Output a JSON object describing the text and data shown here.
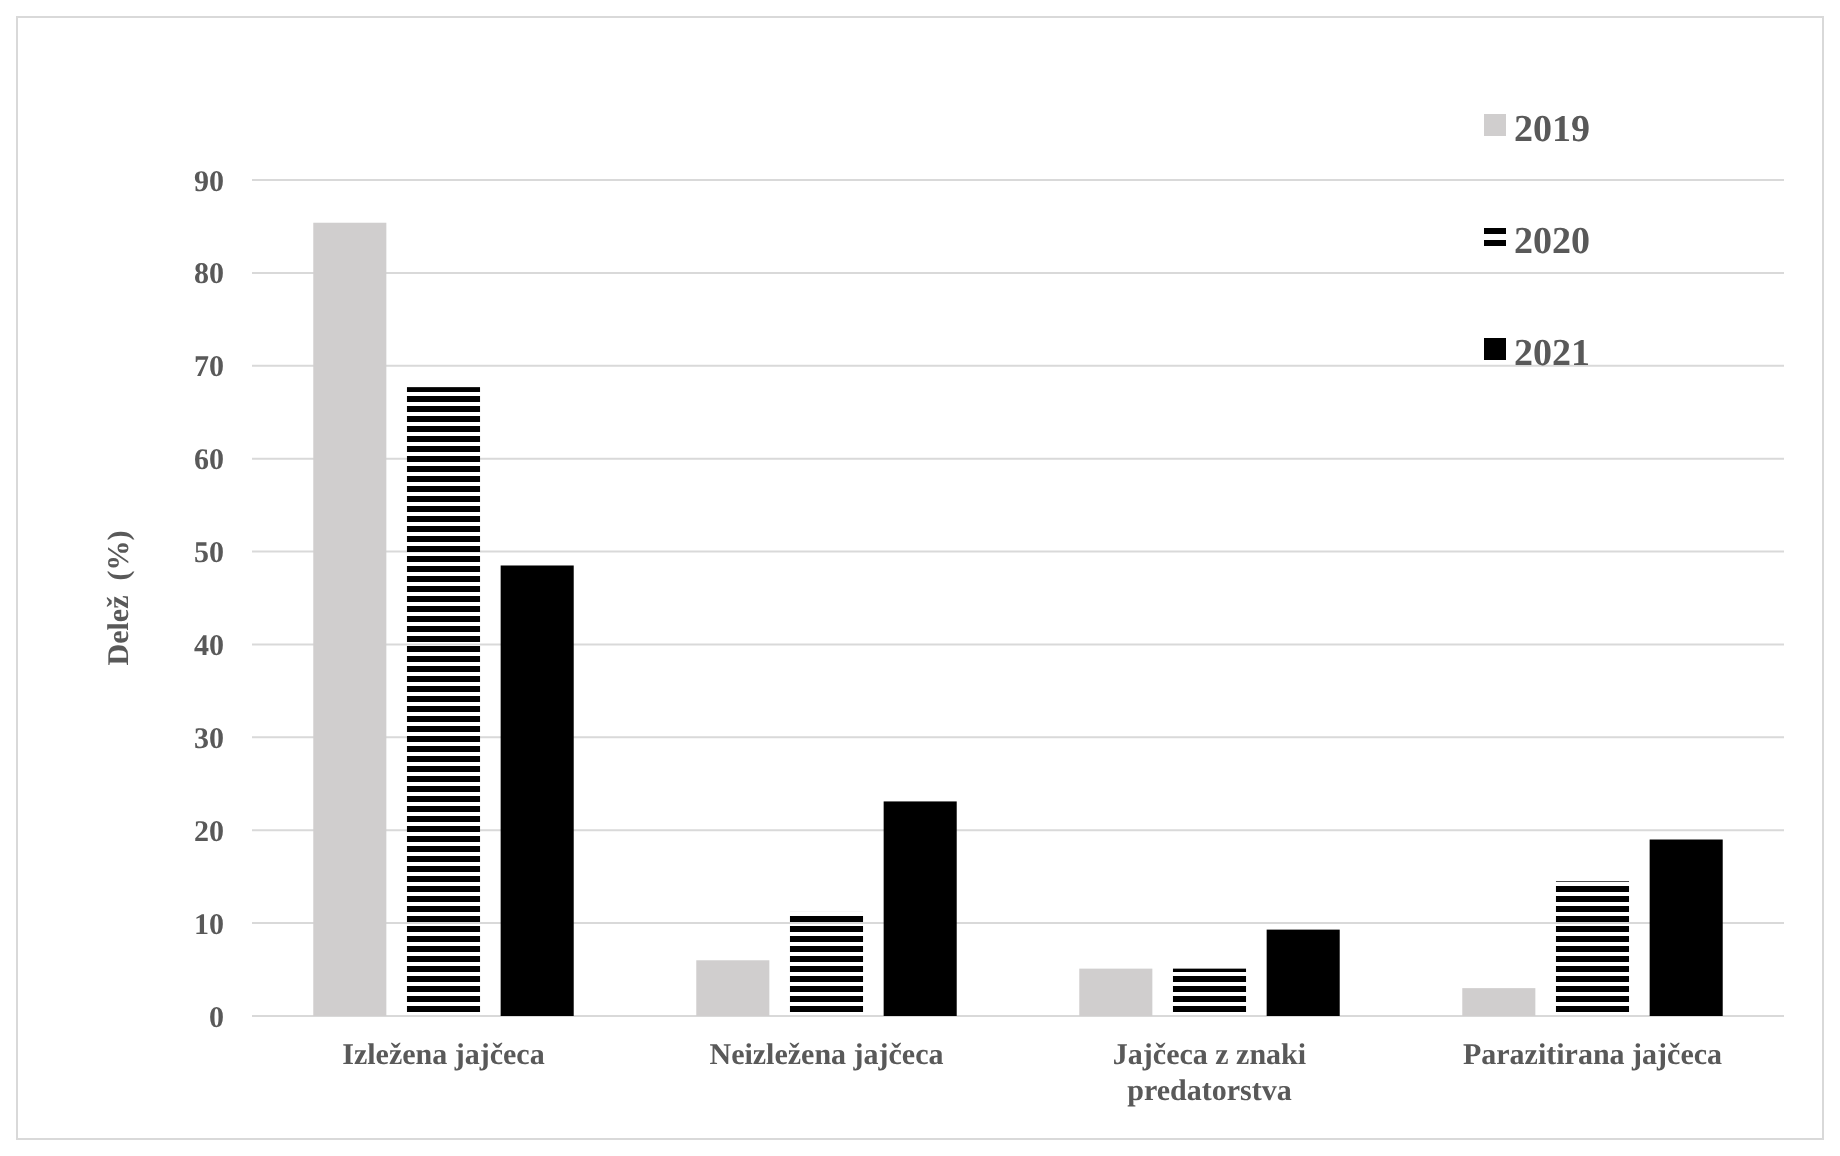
{
  "chart_data": {
    "type": "bar",
    "ylabel": "Delež  (%)",
    "categories": [
      "Izležena jajčeca",
      "Neizležena jajčeca",
      "Jajčeca z znaki predatorstva",
      "Parazitirana jajčeca"
    ],
    "series": [
      {
        "name": "2019",
        "color": "#d0cece",
        "values": [
          85.4,
          6.0,
          5.1,
          3.0
        ]
      },
      {
        "name": "2020",
        "color": "#000000",
        "values": [
          67.7,
          11.2,
          5.1,
          14.5
        ]
      },
      {
        "name": "2021",
        "color": "#000000",
        "values": [
          48.5,
          23.1,
          9.3,
          19.0
        ]
      }
    ],
    "ylim": [
      0,
      90
    ],
    "yticks": [
      0,
      10,
      20,
      30,
      40,
      50,
      60,
      70,
      80,
      90
    ],
    "grid": "y",
    "legend": "top right"
  }
}
